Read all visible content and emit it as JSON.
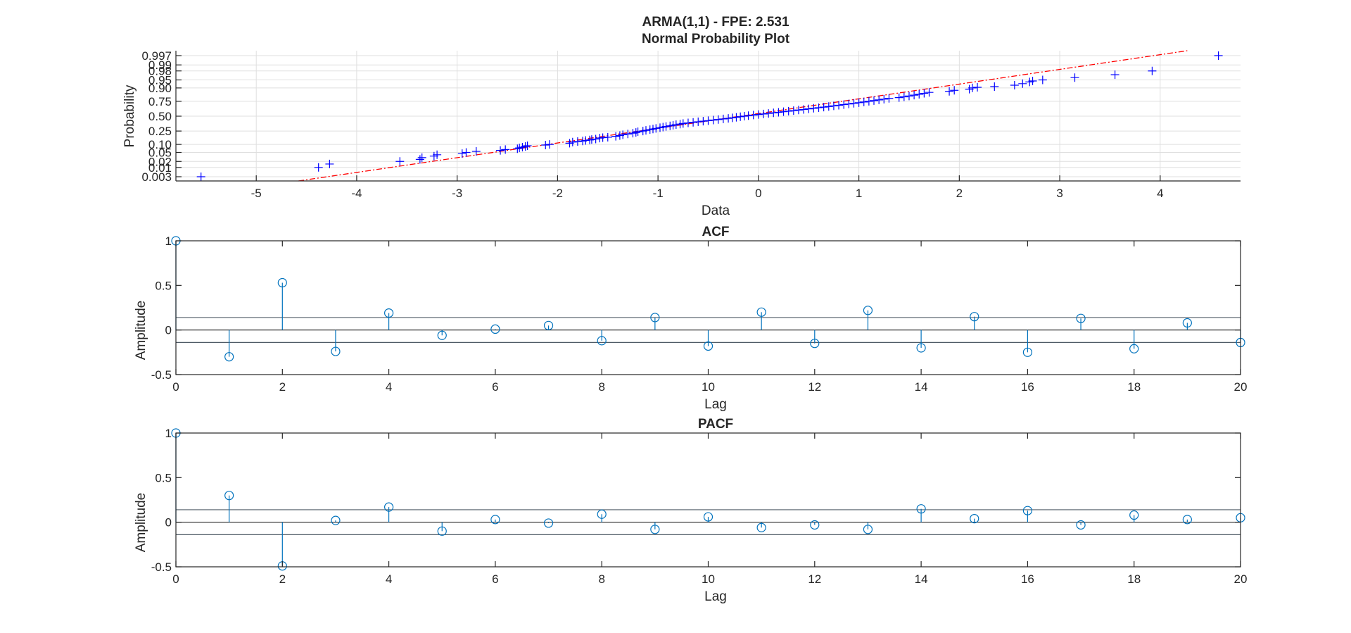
{
  "figure": {
    "title_line1": "ARMA(1,1) - FPE: 2.531",
    "background": "#ffffff"
  },
  "chart_data": [
    {
      "type": "scatter",
      "title": "Normal Probability Plot",
      "xlabel": "Data",
      "ylabel": "Probability",
      "xlim": [
        -5.8,
        4.8
      ],
      "x_ticks": [
        -5,
        -4,
        -3,
        -2,
        -1,
        0,
        1,
        2,
        3,
        4
      ],
      "y_ticks": [
        0.003,
        0.01,
        0.02,
        0.05,
        0.1,
        0.25,
        0.5,
        0.75,
        0.9,
        0.95,
        0.98,
        0.99,
        0.997
      ],
      "y_tick_labels": [
        "0.003",
        "0.01",
        "0.02",
        "0.05",
        "0.10",
        "0.25",
        "0.50",
        "0.75",
        "0.90",
        "0.95",
        "0.98",
        "0.99",
        "0.997"
      ],
      "marker": "+",
      "marker_color": "#0000ff",
      "reference_line": {
        "style": "dash-dot",
        "color": "#ff0000",
        "x": [
          -4.58,
          4.27
        ]
      },
      "grid": true,
      "points": [
        [
          -5.55,
          0.003
        ],
        [
          -4.38,
          0.01
        ],
        [
          -4.27,
          0.015
        ],
        [
          -3.57,
          0.02
        ],
        [
          -3.37,
          0.025
        ],
        [
          -3.35,
          0.03
        ],
        [
          -3.23,
          0.035
        ],
        [
          -3.2,
          0.04
        ],
        [
          -2.95,
          0.045
        ],
        [
          -2.91,
          0.05
        ],
        [
          -2.81,
          0.055
        ],
        [
          -2.57,
          0.06
        ],
        [
          -2.52,
          0.065
        ],
        [
          -2.4,
          0.07
        ],
        [
          -2.38,
          0.075
        ],
        [
          -2.35,
          0.08
        ],
        [
          -2.32,
          0.085
        ],
        [
          -2.3,
          0.09
        ],
        [
          -2.12,
          0.095
        ],
        [
          -2.08,
          0.1
        ],
        [
          -1.88,
          0.11
        ],
        [
          -1.85,
          0.12
        ],
        [
          -1.8,
          0.125
        ],
        [
          -1.75,
          0.13
        ],
        [
          -1.72,
          0.135
        ],
        [
          -1.68,
          0.14
        ],
        [
          -1.66,
          0.145
        ],
        [
          -1.62,
          0.15
        ],
        [
          -1.58,
          0.16
        ],
        [
          -1.55,
          0.165
        ],
        [
          -1.5,
          0.17
        ],
        [
          -1.42,
          0.18
        ],
        [
          -1.38,
          0.19
        ],
        [
          -1.35,
          0.2
        ],
        [
          -1.3,
          0.21
        ],
        [
          -1.25,
          0.22
        ],
        [
          -1.22,
          0.23
        ],
        [
          -1.2,
          0.24
        ],
        [
          -1.15,
          0.25
        ],
        [
          -1.12,
          0.26
        ],
        [
          -1.08,
          0.27
        ],
        [
          -1.05,
          0.28
        ],
        [
          -1.02,
          0.29
        ],
        [
          -0.98,
          0.3
        ],
        [
          -0.95,
          0.31
        ],
        [
          -0.92,
          0.32
        ],
        [
          -0.88,
          0.33
        ],
        [
          -0.85,
          0.34
        ],
        [
          -0.82,
          0.35
        ],
        [
          -0.78,
          0.36
        ],
        [
          -0.75,
          0.37
        ],
        [
          -0.7,
          0.38
        ],
        [
          -0.65,
          0.39
        ],
        [
          -0.6,
          0.4
        ],
        [
          -0.55,
          0.41
        ],
        [
          -0.5,
          0.42
        ],
        [
          -0.45,
          0.43
        ],
        [
          -0.4,
          0.44
        ],
        [
          -0.35,
          0.45
        ],
        [
          -0.3,
          0.46
        ],
        [
          -0.26,
          0.47
        ],
        [
          -0.22,
          0.48
        ],
        [
          -0.18,
          0.49
        ],
        [
          -0.14,
          0.5
        ],
        [
          -0.1,
          0.51
        ],
        [
          -0.05,
          0.52
        ],
        [
          0.0,
          0.53
        ],
        [
          0.05,
          0.54
        ],
        [
          0.1,
          0.55
        ],
        [
          0.15,
          0.56
        ],
        [
          0.2,
          0.57
        ],
        [
          0.25,
          0.58
        ],
        [
          0.3,
          0.59
        ],
        [
          0.35,
          0.6
        ],
        [
          0.4,
          0.61
        ],
        [
          0.45,
          0.62
        ],
        [
          0.5,
          0.63
        ],
        [
          0.55,
          0.64
        ],
        [
          0.6,
          0.65
        ],
        [
          0.65,
          0.66
        ],
        [
          0.7,
          0.67
        ],
        [
          0.75,
          0.68
        ],
        [
          0.8,
          0.69
        ],
        [
          0.85,
          0.7
        ],
        [
          0.9,
          0.71
        ],
        [
          0.95,
          0.72
        ],
        [
          1.0,
          0.73
        ],
        [
          1.05,
          0.74
        ],
        [
          1.1,
          0.75
        ],
        [
          1.15,
          0.76
        ],
        [
          1.2,
          0.77
        ],
        [
          1.25,
          0.78
        ],
        [
          1.3,
          0.79
        ],
        [
          1.4,
          0.8
        ],
        [
          1.45,
          0.81
        ],
        [
          1.5,
          0.82
        ],
        [
          1.55,
          0.83
        ],
        [
          1.6,
          0.84
        ],
        [
          1.65,
          0.85
        ],
        [
          1.7,
          0.86
        ],
        [
          1.9,
          0.87
        ],
        [
          1.95,
          0.88
        ],
        [
          2.1,
          0.89
        ],
        [
          2.13,
          0.9
        ],
        [
          2.18,
          0.905
        ],
        [
          2.35,
          0.91
        ],
        [
          2.55,
          0.92
        ],
        [
          2.63,
          0.93
        ],
        [
          2.7,
          0.94
        ],
        [
          2.73,
          0.945
        ],
        [
          2.83,
          0.95
        ],
        [
          3.15,
          0.96
        ],
        [
          3.55,
          0.97
        ],
        [
          3.92,
          0.98
        ],
        [
          4.58,
          0.997
        ]
      ]
    },
    {
      "type": "stem",
      "title": "ACF",
      "xlabel": "Lag",
      "ylabel": "Amplitude",
      "xlim": [
        0,
        20
      ],
      "ylim": [
        -0.5,
        1
      ],
      "x_ticks": [
        0,
        2,
        4,
        6,
        8,
        10,
        12,
        14,
        16,
        18,
        20
      ],
      "y_ticks": [
        -0.5,
        0,
        0.5,
        1
      ],
      "color": "#0072bd",
      "confidence_bounds": [
        0.14,
        -0.14
      ],
      "lags": [
        0,
        1,
        2,
        3,
        4,
        5,
        6,
        7,
        8,
        9,
        10,
        11,
        12,
        13,
        14,
        15,
        16,
        17,
        18,
        19,
        20
      ],
      "values": [
        1.0,
        -0.3,
        0.53,
        -0.24,
        0.19,
        -0.06,
        0.01,
        0.05,
        -0.12,
        0.14,
        -0.18,
        0.2,
        -0.15,
        0.22,
        -0.2,
        0.15,
        -0.25,
        0.13,
        -0.21,
        0.08,
        -0.14
      ]
    },
    {
      "type": "stem",
      "title": "PACF",
      "xlabel": "Lag",
      "ylabel": "Amplitude",
      "xlim": [
        0,
        20
      ],
      "ylim": [
        -0.5,
        1
      ],
      "x_ticks": [
        0,
        2,
        4,
        6,
        8,
        10,
        12,
        14,
        16,
        18,
        20
      ],
      "y_ticks": [
        -0.5,
        0,
        0.5,
        1
      ],
      "color": "#0072bd",
      "confidence_bounds": [
        0.14,
        -0.14
      ],
      "lags": [
        0,
        1,
        2,
        3,
        4,
        5,
        6,
        7,
        8,
        9,
        10,
        11,
        12,
        13,
        14,
        15,
        16,
        17,
        18,
        19,
        20
      ],
      "values": [
        1.0,
        0.3,
        -0.49,
        0.02,
        0.17,
        -0.1,
        0.03,
        -0.01,
        0.09,
        -0.08,
        0.06,
        -0.06,
        -0.03,
        -0.08,
        0.15,
        0.04,
        0.13,
        -0.03,
        0.08,
        0.03,
        0.05
      ]
    }
  ]
}
